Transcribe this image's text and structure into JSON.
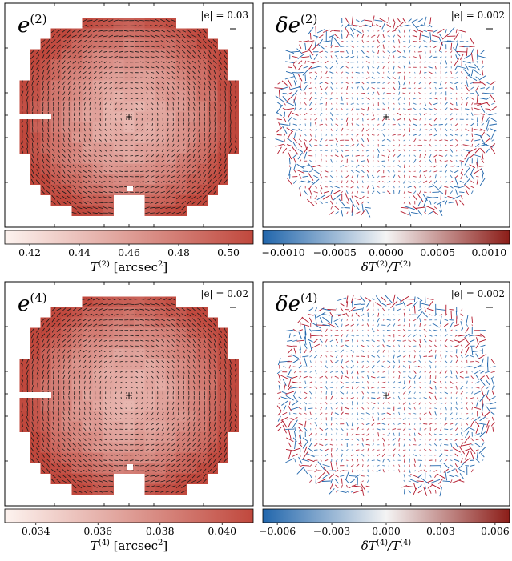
{
  "colors": {
    "seq_low": "#fdf3ef",
    "seq_high": "#c0483d",
    "div_low": "#2166ac",
    "div_mid": "#f4f4f4",
    "div_high": "#8c1d18",
    "whisker_pos": "#b2182b",
    "whisker_neg": "#2166ac",
    "whisker_dark": "#1a1a1a",
    "border": "#000000"
  },
  "chart_data": [
    {
      "id": "p1",
      "type": "heatmap",
      "title_base": "e",
      "title_sup": "(2)",
      "title_prefix": "",
      "scale_label": "|e| = 0.03",
      "colorbar_type": "sequential",
      "colorbar_label_base": "T",
      "colorbar_label_sup": "(2)",
      "colorbar_label_unit": "[arcsec",
      "colorbar_label_unit_sup": "2",
      "colorbar_label_unit_end": "]",
      "colorbar_range": [
        0.41,
        0.51
      ],
      "colorbar_ticks": [
        "0.42",
        "0.44",
        "0.46",
        "0.48",
        "0.50"
      ],
      "colorbar_tick_values": [
        0.42,
        0.44,
        0.46,
        0.48,
        0.5
      ]
    },
    {
      "id": "p2",
      "type": "heatmap",
      "title_base": "e",
      "title_sup": "(2)",
      "title_prefix": "δ",
      "scale_label": "|e| = 0.002",
      "colorbar_type": "diverging",
      "colorbar_label_base": "δT",
      "colorbar_label_sup": "(2)",
      "colorbar_label_mid": "/T",
      "colorbar_label_sup2": "(2)",
      "colorbar_range": [
        -0.0012,
        0.0012
      ],
      "colorbar_ticks": [
        "−0.0010",
        "−0.0005",
        "0.0000",
        "0.0005",
        "0.0010"
      ],
      "colorbar_tick_values": [
        -0.001,
        -0.0005,
        0.0,
        0.0005,
        0.001
      ]
    },
    {
      "id": "p3",
      "type": "heatmap",
      "title_base": "e",
      "title_sup": "(4)",
      "title_prefix": "",
      "scale_label": "|e| = 0.02",
      "colorbar_type": "sequential",
      "colorbar_label_base": "T",
      "colorbar_label_sup": "(4)",
      "colorbar_label_unit": "[arcsec",
      "colorbar_label_unit_sup": "2",
      "colorbar_label_unit_end": "]",
      "colorbar_range": [
        0.033,
        0.041
      ],
      "colorbar_ticks": [
        "0.034",
        "0.036",
        "0.038",
        "0.040"
      ],
      "colorbar_tick_values": [
        0.034,
        0.036,
        0.038,
        0.04
      ]
    },
    {
      "id": "p4",
      "type": "heatmap",
      "title_base": "e",
      "title_sup": "(4)",
      "title_prefix": "δ",
      "scale_label": "|e| = 0.002",
      "colorbar_type": "diverging",
      "colorbar_label_base": "δT",
      "colorbar_label_sup": "(4)",
      "colorbar_label_mid": "/T",
      "colorbar_label_sup2": "(4)",
      "colorbar_range": [
        -0.0068,
        0.0068
      ],
      "colorbar_ticks": [
        "−0.006",
        "−0.003",
        "0.000",
        "0.003",
        "0.006"
      ],
      "colorbar_tick_values": [
        -0.006,
        -0.003,
        0.0,
        0.003,
        0.006
      ]
    }
  ]
}
